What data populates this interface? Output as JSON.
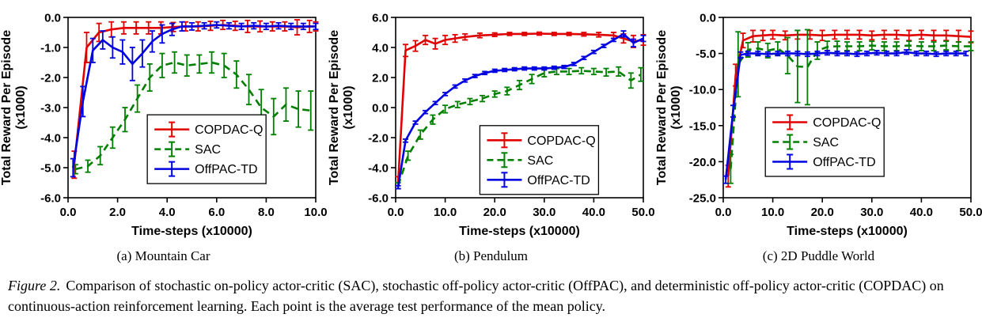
{
  "figure": {
    "label": "Figure 2.",
    "caption": "Comparison of stochastic on-policy actor-critic (SAC), stochastic off-policy actor-critic (OffPAC), and deterministic off-policy actor-critic (COPDAC) on continuous-action reinforcement learning. Each point is the average test performance of the mean policy."
  },
  "colors": {
    "copdac": "#e00000",
    "sac": "#007f00",
    "offpac": "#0000e0"
  },
  "chart_data": [
    {
      "type": "line",
      "subcaption": "(a) Mountain Car",
      "xlabel": "Time-steps (x10000)",
      "ylabel": "Total Reward Per Episode",
      "ylabel_units": "(x1000)",
      "xlim": [
        0,
        10
      ],
      "ylim": [
        -6,
        0
      ],
      "xticks": [
        0,
        2,
        4,
        6,
        8,
        10
      ],
      "yticks": [
        0,
        -1,
        -2,
        -3,
        -4,
        -5,
        -6
      ],
      "grid": false,
      "legend": {
        "fx": 0.32,
        "fy": 0.54
      },
      "series": [
        {
          "name": "COPDAC-Q",
          "color": "#e00000",
          "dashed": false,
          "x": [
            0.25,
            0.75,
            1.25,
            1.75,
            2.25,
            2.75,
            3.25,
            3.75,
            4.25,
            4.75,
            5.25,
            5.75,
            6.25,
            6.75,
            7.25,
            7.75,
            8.25,
            8.75,
            9.25,
            9.75,
            10.0
          ],
          "y": [
            -4.9,
            -1.0,
            -0.5,
            -0.4,
            -0.35,
            -0.35,
            -0.35,
            -0.35,
            -0.32,
            -0.3,
            -0.3,
            -0.28,
            -0.25,
            -0.28,
            -0.3,
            -0.3,
            -0.3,
            -0.3,
            -0.33,
            -0.3,
            -0.3
          ],
          "err": [
            0.45,
            0.5,
            0.3,
            0.25,
            0.2,
            0.2,
            0.2,
            0.2,
            0.15,
            0.15,
            0.15,
            0.15,
            0.15,
            0.15,
            0.2,
            0.18,
            0.15,
            0.15,
            0.25,
            0.2,
            0.15
          ]
        },
        {
          "name": "SAC",
          "color": "#007f00",
          "dashed": true,
          "x": [
            0.3,
            0.8,
            1.3,
            1.8,
            2.3,
            2.8,
            3.3,
            3.8,
            4.3,
            4.8,
            5.3,
            5.8,
            6.3,
            6.8,
            7.3,
            7.8,
            8.3,
            8.8,
            9.3,
            9.8
          ],
          "y": [
            -5.05,
            -4.95,
            -4.6,
            -4.0,
            -3.4,
            -2.7,
            -2.0,
            -1.6,
            -1.5,
            -1.6,
            -1.55,
            -1.5,
            -1.6,
            -1.9,
            -2.4,
            -3.0,
            -3.3,
            -2.9,
            -3.05,
            -3.1
          ],
          "err": [
            0.15,
            0.2,
            0.3,
            0.35,
            0.4,
            0.45,
            0.45,
            0.4,
            0.35,
            0.35,
            0.3,
            0.35,
            0.4,
            0.45,
            0.5,
            0.6,
            0.6,
            0.55,
            0.6,
            0.65
          ]
        },
        {
          "name": "OffPAC-TD",
          "color": "#0000e0",
          "dashed": false,
          "x": [
            0.2,
            0.6,
            1.0,
            1.4,
            1.8,
            2.2,
            2.6,
            3.0,
            3.4,
            3.8,
            4.2,
            4.6,
            5.0,
            5.5,
            6.0,
            6.5,
            7.0,
            7.5,
            8.0,
            8.5,
            9.0,
            9.5,
            10.0
          ],
          "y": [
            -5.0,
            -2.8,
            -1.1,
            -0.75,
            -1.0,
            -1.15,
            -1.55,
            -1.2,
            -0.8,
            -0.55,
            -0.4,
            -0.3,
            -0.3,
            -0.28,
            -0.25,
            -0.28,
            -0.3,
            -0.28,
            -0.3,
            -0.28,
            -0.3,
            -0.3,
            -0.3
          ],
          "err": [
            0.3,
            0.5,
            0.4,
            0.3,
            0.35,
            0.4,
            0.55,
            0.45,
            0.35,
            0.3,
            0.2,
            0.15,
            0.12,
            0.1,
            0.1,
            0.1,
            0.1,
            0.1,
            0.1,
            0.1,
            0.1,
            0.1,
            0.1
          ]
        }
      ]
    },
    {
      "type": "line",
      "subcaption": "(b) Pendulum",
      "xlabel": "Time-steps (x10000)",
      "ylabel": "Total Reward Per Episode",
      "ylabel_units": "(x1000)",
      "xlim": [
        0,
        50
      ],
      "ylim": [
        -6,
        6
      ],
      "xticks": [
        0,
        10,
        20,
        30,
        40,
        50
      ],
      "yticks": [
        6,
        4,
        2,
        0,
        -2,
        -4,
        -6
      ],
      "grid": false,
      "legend": {
        "fx": 0.34,
        "fy": 0.6
      },
      "series": [
        {
          "name": "COPDAC-Q",
          "color": "#e00000",
          "dashed": false,
          "x": [
            0.5,
            2,
            4,
            6,
            8,
            10,
            12,
            14,
            17,
            20,
            23,
            26,
            29,
            32,
            35,
            38,
            41,
            44,
            46,
            48,
            50
          ],
          "y": [
            -5.0,
            3.8,
            4.1,
            4.5,
            4.25,
            4.5,
            4.6,
            4.7,
            4.8,
            4.85,
            4.9,
            4.9,
            4.92,
            4.9,
            4.9,
            4.88,
            4.85,
            4.8,
            4.6,
            4.4,
            4.5
          ],
          "err": [
            0.4,
            0.4,
            0.35,
            0.3,
            0.35,
            0.3,
            0.25,
            0.2,
            0.15,
            0.12,
            0.1,
            0.1,
            0.1,
            0.1,
            0.1,
            0.12,
            0.15,
            0.2,
            0.3,
            0.4,
            0.35
          ]
        },
        {
          "name": "SAC",
          "color": "#007f00",
          "dashed": true,
          "x": [
            0.5,
            2.5,
            5,
            7.5,
            10,
            12.5,
            15,
            17.5,
            20,
            22.5,
            25,
            27.5,
            30,
            32.5,
            35,
            37.5,
            40,
            42.5,
            45,
            47.5,
            49.5
          ],
          "y": [
            -5.2,
            -3.2,
            -1.8,
            -0.8,
            -0.1,
            0.2,
            0.4,
            0.6,
            0.9,
            1.1,
            1.5,
            1.9,
            2.3,
            2.4,
            2.4,
            2.45,
            2.4,
            2.35,
            2.4,
            1.8,
            2.2
          ],
          "err": [
            0.2,
            0.3,
            0.3,
            0.3,
            0.25,
            0.2,
            0.2,
            0.2,
            0.2,
            0.25,
            0.3,
            0.3,
            0.25,
            0.2,
            0.2,
            0.2,
            0.2,
            0.25,
            0.3,
            0.5,
            0.45
          ]
        },
        {
          "name": "OffPAC-TD",
          "color": "#0000e0",
          "dashed": false,
          "x": [
            0.5,
            2,
            4,
            6,
            8,
            10,
            12,
            14,
            16,
            18,
            20,
            22,
            24,
            26,
            28,
            30,
            32,
            34,
            36,
            38,
            40,
            42,
            44,
            46,
            48,
            50
          ],
          "y": [
            -5.3,
            -2.2,
            -1.0,
            -0.3,
            0.3,
            0.9,
            1.4,
            1.8,
            2.1,
            2.3,
            2.45,
            2.5,
            2.55,
            2.6,
            2.6,
            2.6,
            2.65,
            2.7,
            2.9,
            3.3,
            3.7,
            4.1,
            4.5,
            4.9,
            4.3,
            4.6
          ],
          "err": [
            0.1,
            0.1,
            0.1,
            0.1,
            0.1,
            0.1,
            0.1,
            0.1,
            0.1,
            0.1,
            0.1,
            0.1,
            0.1,
            0.1,
            0.1,
            0.1,
            0.1,
            0.1,
            0.1,
            0.1,
            0.1,
            0.1,
            0.1,
            0.2,
            0.25,
            0.2
          ]
        }
      ]
    },
    {
      "type": "line",
      "subcaption": "(c) 2D Puddle World",
      "xlabel": "Time-steps (x10000)",
      "ylabel": "Total Reward Per Episode",
      "ylabel_units": "(x1000)",
      "xlim": [
        0,
        50
      ],
      "ylim": [
        -25,
        0
      ],
      "xticks": [
        0,
        10,
        20,
        30,
        40,
        50
      ],
      "yticks": [
        0,
        -5,
        -10,
        -15,
        -20,
        -25
      ],
      "grid": false,
      "legend": {
        "fx": 0.17,
        "fy": 0.5
      },
      "series": [
        {
          "name": "COPDAC-Q",
          "color": "#e00000",
          "dashed": false,
          "x": [
            1,
            2.5,
            4,
            6,
            8,
            10,
            12.5,
            15,
            17.5,
            20,
            22.5,
            25,
            27.5,
            30,
            32.5,
            35,
            37.5,
            40,
            42.5,
            45,
            47.5,
            50
          ],
          "y": [
            -22,
            -8,
            -3.2,
            -2.6,
            -2.5,
            -2.4,
            -2.5,
            -2.4,
            -2.4,
            -2.5,
            -2.4,
            -2.4,
            -2.4,
            -2.5,
            -2.4,
            -2.4,
            -2.5,
            -2.4,
            -2.5,
            -2.5,
            -2.6,
            -2.7
          ],
          "err": [
            1.5,
            1.5,
            1.0,
            0.8,
            0.7,
            0.6,
            0.6,
            0.6,
            0.6,
            0.7,
            0.6,
            0.6,
            0.6,
            0.6,
            0.6,
            0.6,
            0.7,
            0.6,
            0.7,
            0.7,
            0.8,
            0.8
          ]
        },
        {
          "name": "SAC",
          "color": "#007f00",
          "dashed": true,
          "x": [
            1.5,
            3,
            5,
            7,
            9,
            11,
            13,
            15,
            17,
            19,
            21,
            23,
            25,
            27.5,
            30,
            32.5,
            35,
            37.5,
            40,
            42.5,
            45,
            47.5,
            50
          ],
          "y": [
            -21,
            -6.5,
            -4.5,
            -4.3,
            -4.6,
            -4.3,
            -5.3,
            -6.8,
            -6.9,
            -4.6,
            -4.1,
            -4.0,
            -4.0,
            -4.0,
            -3.9,
            -4.0,
            -4.0,
            -3.9,
            -4.0,
            -4.0,
            -3.9,
            -4.0,
            -4.0
          ],
          "err": [
            2.0,
            4.5,
            1.0,
            0.9,
            1.0,
            0.9,
            2.5,
            5.0,
            5.2,
            1.2,
            0.8,
            0.7,
            0.6,
            0.6,
            0.6,
            0.6,
            0.6,
            0.6,
            0.6,
            0.6,
            0.6,
            0.6,
            0.6
          ]
        },
        {
          "name": "OffPAC-TD",
          "color": "#0000e0",
          "dashed": false,
          "x": [
            0.5,
            2,
            3.5,
            5,
            7,
            9,
            11,
            13,
            15,
            17,
            19,
            21,
            23,
            25,
            27,
            29,
            31,
            33,
            35,
            37,
            39,
            41,
            43,
            45,
            47,
            49
          ],
          "y": [
            -22.5,
            -13,
            -5.2,
            -5.0,
            -5.0,
            -5.1,
            -5.0,
            -5.0,
            -5.0,
            -5.1,
            -5.0,
            -4.9,
            -5.0,
            -5.0,
            -5.1,
            -5.0,
            -4.9,
            -5.0,
            -5.0,
            -4.8,
            -5.0,
            -5.0,
            -5.1,
            -5.0,
            -5.0,
            -5.0
          ],
          "err": [
            0.5,
            0.8,
            0.4,
            0.3,
            0.3,
            0.3,
            0.3,
            0.3,
            0.3,
            0.3,
            0.3,
            0.3,
            0.3,
            0.3,
            0.3,
            0.3,
            0.3,
            0.3,
            0.3,
            0.3,
            0.3,
            0.3,
            0.3,
            0.3,
            0.3,
            0.3
          ]
        }
      ]
    }
  ]
}
